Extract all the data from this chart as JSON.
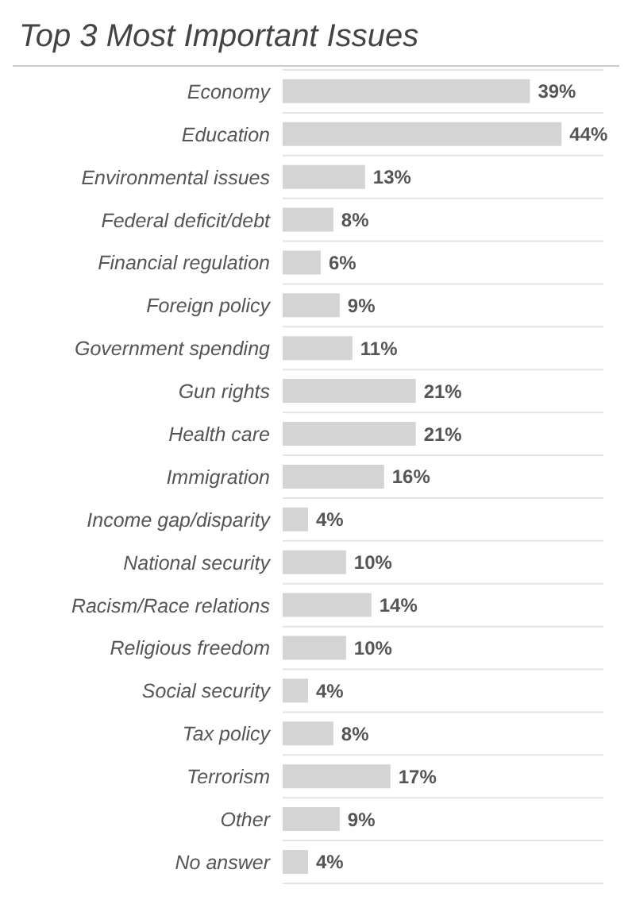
{
  "chart_data": {
    "type": "bar",
    "orientation": "horizontal",
    "title": "Top 3 Most Important Issues",
    "categories": [
      "Economy",
      "Education",
      "Environmental issues",
      "Federal deficit/debt",
      "Financial regulation",
      "Foreign policy",
      "Government spending",
      "Gun rights",
      "Health care",
      "Immigration",
      "Income gap/disparity",
      "National security",
      "Racism/Race relations",
      "Religious freedom",
      "Social security",
      "Tax policy",
      "Terrorism",
      "Other",
      "No answer"
    ],
    "values": [
      39,
      44,
      13,
      8,
      6,
      9,
      11,
      21,
      21,
      16,
      4,
      10,
      14,
      10,
      4,
      8,
      17,
      9,
      4
    ],
    "value_labels": [
      "39%",
      "44%",
      "13%",
      "8%",
      "6%",
      "9%",
      "11%",
      "21%",
      "21%",
      "16%",
      "4%",
      "10%",
      "14%",
      "10%",
      "4%",
      "8%",
      "17%",
      "9%",
      "4%"
    ],
    "color": "#d4d4d4",
    "grid": "y"
  }
}
